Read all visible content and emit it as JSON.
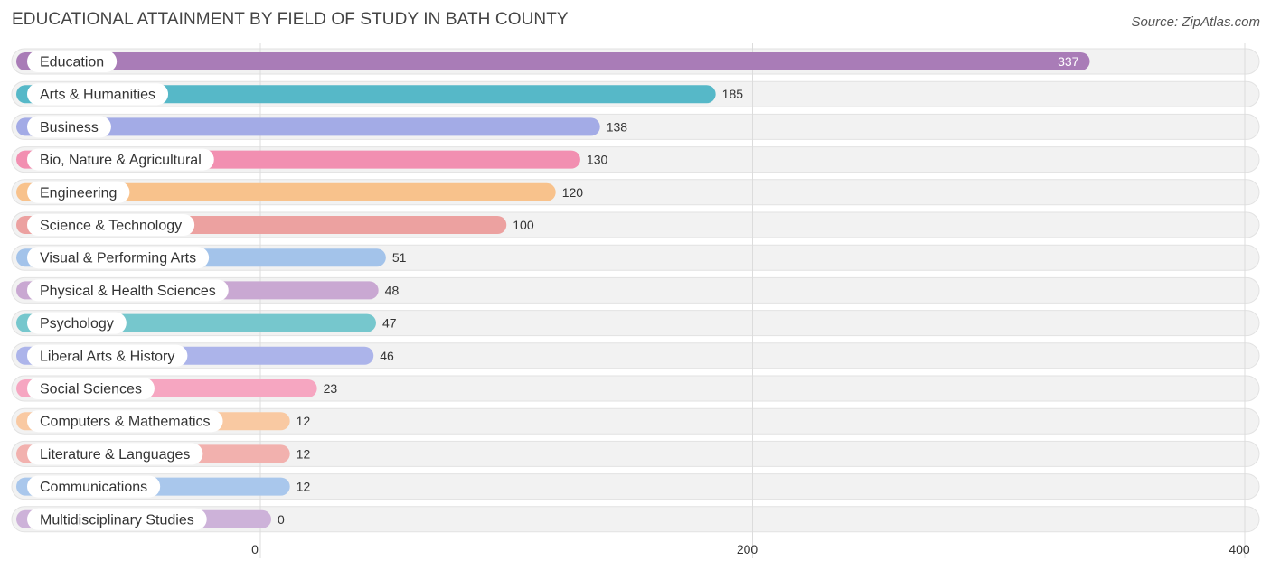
{
  "header": {
    "title": "EDUCATIONAL ATTAINMENT BY FIELD OF STUDY IN BATH COUNTY",
    "source": "Source: ZipAtlas.com"
  },
  "chart_data": {
    "type": "bar",
    "orientation": "horizontal",
    "title": "EDUCATIONAL ATTAINMENT BY FIELD OF STUDY IN BATH COUNTY",
    "xlabel": "",
    "ylabel": "",
    "xlim": [
      0,
      400
    ],
    "x_ticks": [
      "0",
      "200",
      "400"
    ],
    "grid": true,
    "categories": [
      "Education",
      "Arts & Humanities",
      "Business",
      "Bio, Nature & Agricultural",
      "Engineering",
      "Science & Technology",
      "Visual & Performing Arts",
      "Physical & Health Sciences",
      "Psychology",
      "Liberal Arts & History",
      "Social Sciences",
      "Computers & Mathematics",
      "Literature & Languages",
      "Communications",
      "Multidisciplinary Studies"
    ],
    "values": [
      337,
      185,
      138,
      130,
      120,
      100,
      51,
      48,
      47,
      46,
      23,
      12,
      12,
      12,
      0
    ],
    "value_labels": [
      "337",
      "185",
      "138",
      "130",
      "120",
      "100",
      "51",
      "48",
      "47",
      "46",
      "23",
      "12",
      "12",
      "12",
      "0"
    ],
    "colors": [
      "#a97cb7",
      "#56b8c8",
      "#a3abe6",
      "#f28fb1",
      "#f8c28c",
      "#eca1a0",
      "#a3c3ea",
      "#c9a8d2",
      "#76c7cd",
      "#acb4ea",
      "#f6a6c1",
      "#f9c9a2",
      "#f2b1ae",
      "#a9c7ec",
      "#cdb2d9"
    ]
  }
}
